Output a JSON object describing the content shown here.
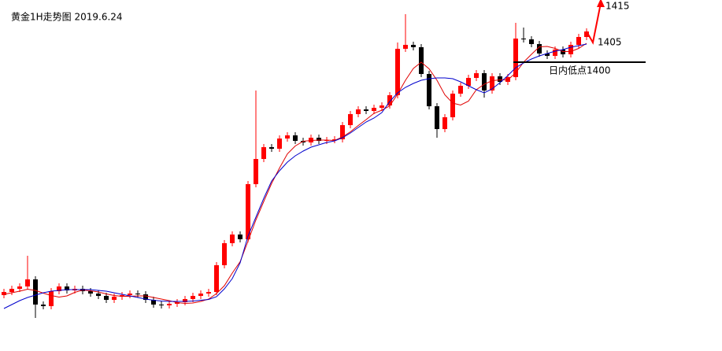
{
  "chart_data": {
    "type": "candlestick",
    "title": "黄金1H走势图 2019.6.24",
    "up_color": "#ff0000",
    "down_color": "#000000",
    "ylim": [
      1326.6,
      1415.8
    ],
    "open": [
      1340.8,
      1341.6,
      1342.4,
      1343.0,
      1344.8,
      1338.4,
      1338.0,
      1341.8,
      1343.0,
      1342.0,
      1342.4,
      1341.8,
      1341.2,
      1340.6,
      1339.6,
      1340.4,
      1340.8,
      1341.2,
      1341.0,
      1339.6,
      1338.4,
      1338.2,
      1338.6,
      1339.0,
      1339.8,
      1340.6,
      1341.2,
      1341.6,
      1348.4,
      1354.0,
      1356.2,
      1355.0,
      1369.0,
      1375.4,
      1378.4,
      1378.0,
      1380.6,
      1381.4,
      1380.0,
      1379.6,
      1380.8,
      1380.0,
      1380.2,
      1380.4,
      1384.0,
      1386.8,
      1388.0,
      1387.6,
      1388.4,
      1389.0,
      1391.6,
      1403.4,
      1404.4,
      1403.8,
      1397.0,
      1388.8,
      1383.0,
      1386.0,
      1392.0,
      1394.0,
      1396.0,
      1397.2,
      1392.8,
      1396.4,
      1395.0,
      1396.2,
      1406.0,
      1405.8,
      1404.6,
      1402.2,
      1401.6,
      1403.2,
      1402.0,
      1404.4,
      1406.4
    ],
    "high": [
      1342.4,
      1343.2,
      1343.8,
      1350.8,
      1345.6,
      1339.2,
      1342.6,
      1343.8,
      1343.8,
      1343.2,
      1343.2,
      1342.6,
      1342.0,
      1341.4,
      1341.2,
      1341.6,
      1342.0,
      1342.0,
      1341.8,
      1340.4,
      1339.2,
      1339.4,
      1339.8,
      1340.6,
      1341.4,
      1342.0,
      1342.4,
      1349.2,
      1354.8,
      1357.0,
      1357.0,
      1369.8,
      1392.8,
      1379.2,
      1379.2,
      1381.4,
      1382.2,
      1382.2,
      1380.8,
      1381.6,
      1381.6,
      1381.0,
      1381.2,
      1384.8,
      1387.6,
      1388.8,
      1388.8,
      1389.2,
      1389.8,
      1392.4,
      1405.0,
      1412.2,
      1405.2,
      1404.6,
      1397.8,
      1389.6,
      1386.8,
      1392.8,
      1394.8,
      1396.8,
      1398.0,
      1398.0,
      1397.2,
      1397.2,
      1397.0,
      1410.0,
      1408.8,
      1406.6,
      1405.4,
      1403.0,
      1404.0,
      1404.0,
      1405.2,
      1407.2,
      1408.6
    ],
    "low": [
      1340.0,
      1340.8,
      1341.6,
      1342.2,
      1335.0,
      1337.2,
      1337.2,
      1341.0,
      1341.2,
      1341.2,
      1341.0,
      1340.4,
      1339.8,
      1338.8,
      1338.8,
      1339.6,
      1340.0,
      1340.2,
      1338.8,
      1337.6,
      1337.4,
      1337.4,
      1337.8,
      1338.2,
      1339.0,
      1339.8,
      1340.4,
      1340.8,
      1347.6,
      1353.2,
      1354.2,
      1354.2,
      1368.2,
      1374.6,
      1377.2,
      1377.2,
      1379.8,
      1379.2,
      1378.8,
      1378.8,
      1379.2,
      1379.2,
      1379.4,
      1379.6,
      1383.2,
      1386.0,
      1386.8,
      1386.8,
      1387.6,
      1388.2,
      1390.8,
      1402.6,
      1403.0,
      1396.2,
      1388.0,
      1380.8,
      1382.2,
      1385.2,
      1391.2,
      1393.2,
      1395.2,
      1391.0,
      1392.0,
      1394.2,
      1394.2,
      1395.4,
      1405.0,
      1403.8,
      1401.4,
      1400.8,
      1400.8,
      1401.2,
      1401.2,
      1403.6,
      1405.6
    ],
    "close": [
      1341.6,
      1342.4,
      1343.0,
      1344.8,
      1338.4,
      1338.0,
      1341.8,
      1343.0,
      1342.0,
      1342.4,
      1341.8,
      1341.2,
      1340.6,
      1339.6,
      1340.4,
      1340.8,
      1341.2,
      1341.0,
      1339.6,
      1338.4,
      1338.2,
      1338.6,
      1339.0,
      1339.8,
      1340.6,
      1341.2,
      1341.6,
      1348.4,
      1354.0,
      1356.2,
      1355.0,
      1369.0,
      1375.4,
      1378.4,
      1378.0,
      1380.6,
      1381.4,
      1380.0,
      1379.6,
      1380.8,
      1380.0,
      1380.2,
      1380.4,
      1384.0,
      1386.8,
      1388.0,
      1387.6,
      1388.4,
      1389.0,
      1391.6,
      1403.4,
      1404.4,
      1403.8,
      1397.0,
      1388.8,
      1383.0,
      1386.0,
      1392.0,
      1394.0,
      1396.0,
      1397.2,
      1392.8,
      1396.4,
      1395.0,
      1396.2,
      1406.0,
      1405.8,
      1404.6,
      1402.2,
      1401.6,
      1403.2,
      1402.0,
      1404.4,
      1406.4,
      1407.8
    ],
    "lines": [
      {
        "color": "#e00000",
        "values": [
          1341.0,
          1341.4,
          1341.8,
          1342.3,
          1342.0,
          1341.3,
          1340.7,
          1340.3,
          1340.6,
          1341.5,
          1342.1,
          1341.9,
          1341.6,
          1341.1,
          1340.7,
          1340.5,
          1340.5,
          1340.6,
          1340.6,
          1340.2,
          1339.8,
          1339.4,
          1338.9,
          1338.7,
          1338.8,
          1339.2,
          1339.8,
          1341.2,
          1343.2,
          1346.4,
          1349.3,
          1354.5,
          1359.9,
          1364.6,
          1369.2,
          1373.1,
          1376.7,
          1378.7,
          1379.9,
          1380.1,
          1380.2,
          1380.2,
          1380.1,
          1381.0,
          1382.3,
          1383.9,
          1385.4,
          1387.0,
          1387.8,
          1388.9,
          1391.9,
          1395.4,
          1398.4,
          1400.0,
          1398.3,
          1395.4,
          1391.7,
          1389.6,
          1389.1,
          1390.1,
          1393.0,
          1394.4,
          1395.3,
          1395.5,
          1395.5,
          1397.3,
          1400.0,
          1402.0,
          1403.9,
          1404.0,
          1403.5,
          1402.7,
          1402.7,
          1403.5,
          1404.8
        ]
      },
      {
        "color": "#0000cc",
        "values": [
          1337.4,
          1338.4,
          1339.4,
          1340.2,
          1340.8,
          1341.4,
          1341.8,
          1342.0,
          1342.2,
          1342.2,
          1342.2,
          1342.2,
          1342.0,
          1341.8,
          1341.4,
          1341.0,
          1340.6,
          1340.2,
          1339.8,
          1339.5,
          1339.3,
          1339.2,
          1339.2,
          1339.2,
          1339.3,
          1339.5,
          1339.7,
          1340.4,
          1342.4,
          1345.0,
          1349.0,
          1355.8,
          1360.6,
          1365.4,
          1369.8,
          1372.4,
          1374.6,
          1376.2,
          1377.4,
          1378.4,
          1379.0,
          1379.6,
          1380.0,
          1380.8,
          1382.0,
          1383.4,
          1384.8,
          1385.8,
          1387.2,
          1390.0,
          1392.2,
          1393.6,
          1394.6,
          1395.4,
          1395.8,
          1396.0,
          1396.0,
          1395.8,
          1395.0,
          1394.0,
          1393.0,
          1392.2,
          1393.2,
          1394.8,
          1396.6,
          1398.6,
          1399.8,
          1400.8,
          1401.6,
          1402.2,
          1402.8,
          1403.2,
          1403.8,
          1404.2,
          1404.6
        ]
      }
    ],
    "support": {
      "value": 1400,
      "label": "日内低点1400"
    },
    "targets": [
      {
        "value": 1405,
        "label": "1405"
      },
      {
        "value": 1415,
        "label": "1415"
      }
    ],
    "arrow_color": "#ff0000"
  }
}
